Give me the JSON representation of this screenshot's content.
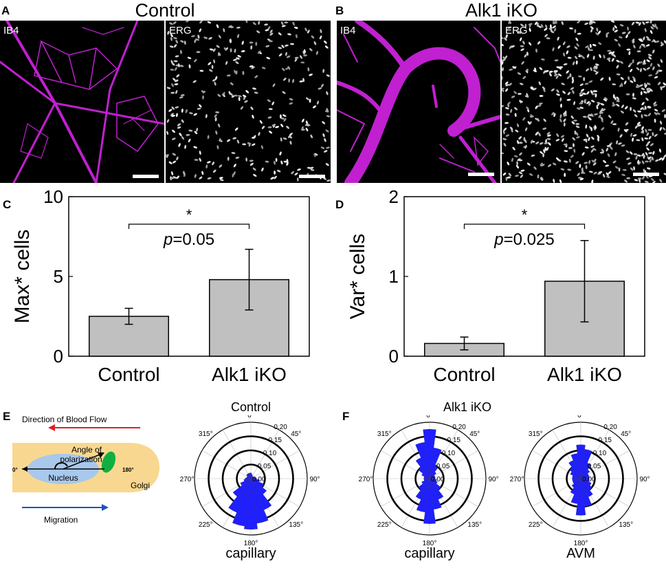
{
  "panels": {
    "A": {
      "letter": "A",
      "title": "Control",
      "left_label": "IB4",
      "right_label": "ERG"
    },
    "B": {
      "letter": "B",
      "title": "Alk1 iKO",
      "left_label": "IB4",
      "right_label": "ERG"
    },
    "C": {
      "letter": "C"
    },
    "D": {
      "letter": "D"
    },
    "E": {
      "letter": "E",
      "polar_title": "Control",
      "polar_caption": "capillary",
      "schematic": {
        "flow": "Direction of Blood Flow",
        "angle_line1": "Angle of",
        "angle_line2": "polarization",
        "nucleus": "Nucleus",
        "golgi": "Golgi",
        "migration": "Migration",
        "zero": "0°",
        "one_eighty": "180°"
      }
    },
    "F": {
      "letter": "F",
      "title": "Alk1 iKO",
      "caption_left": "capillary",
      "caption_right": "AVM"
    }
  },
  "colors": {
    "ib4": "#c020d0",
    "bar_fill": "#c0c0c0",
    "rose": "#1f1fff",
    "flow_arrow": "#e02020",
    "migration_arrow": "#2050c0",
    "golgi": "#10b040",
    "nucleus": "#a8c8ec",
    "cell": "#f8d890"
  },
  "polar_ticks": {
    "angles": [
      "0°",
      "45°",
      "90°",
      "135°",
      "180°",
      "225°",
      "270°",
      "315°"
    ],
    "radial": [
      "0.00",
      "0.05",
      "0.10",
      "0.15",
      "0.20"
    ]
  },
  "chart_data": [
    {
      "id": "C",
      "type": "bar",
      "categories": [
        "Control",
        "Alk1 iKO"
      ],
      "values": [
        2.5,
        4.8
      ],
      "errors": [
        0.5,
        1.9
      ],
      "ylabel": "Max* cells",
      "ylim": [
        0,
        10
      ],
      "yticks": [
        "0",
        "5",
        "10"
      ],
      "significance": {
        "star": "*",
        "p_label": "p",
        "p_value": "=0.05"
      }
    },
    {
      "id": "D",
      "type": "bar",
      "categories": [
        "Control",
        "Alk1 iKO"
      ],
      "values": [
        0.16,
        0.94
      ],
      "errors": [
        0.08,
        0.51
      ],
      "ylabel": "Var* cells",
      "ylim": [
        0,
        2
      ],
      "yticks": [
        "0",
        "1",
        "2"
      ],
      "significance": {
        "star": "*",
        "p_label": "p",
        "p_value": "=0.025"
      }
    }
  ],
  "polar_data": [
    {
      "id": "E-control",
      "rmax": 0.2,
      "bins_deg": [
        0,
        15,
        30,
        45,
        60,
        75,
        90,
        105,
        120,
        135,
        150,
        165,
        180,
        195,
        210,
        225,
        240,
        255,
        270,
        285,
        300,
        315,
        330,
        345
      ],
      "values": [
        0.02,
        0.015,
        0.01,
        0.01,
        0.01,
        0.015,
        0.02,
        0.03,
        0.05,
        0.07,
        0.12,
        0.16,
        0.18,
        0.17,
        0.13,
        0.08,
        0.04,
        0.025,
        0.02,
        0.015,
        0.015,
        0.02,
        0.02,
        0.02
      ]
    },
    {
      "id": "F-capillary",
      "rmax": 0.2,
      "bins_deg": [
        0,
        15,
        30,
        45,
        60,
        75,
        90,
        105,
        120,
        135,
        150,
        165,
        180,
        195,
        210,
        225,
        240,
        255,
        270,
        285,
        300,
        315,
        330,
        345
      ],
      "values": [
        0.175,
        0.11,
        0.05,
        0.03,
        0.02,
        0.02,
        0.02,
        0.025,
        0.03,
        0.05,
        0.08,
        0.11,
        0.16,
        0.12,
        0.08,
        0.05,
        0.03,
        0.02,
        0.02,
        0.02,
        0.03,
        0.05,
        0.08,
        0.13
      ]
    },
    {
      "id": "F-avm",
      "rmax": 0.2,
      "bins_deg": [
        0,
        15,
        30,
        45,
        60,
        75,
        90,
        105,
        120,
        135,
        150,
        165,
        180,
        195,
        210,
        225,
        240,
        255,
        270,
        285,
        300,
        315,
        330,
        345
      ],
      "values": [
        0.12,
        0.105,
        0.06,
        0.04,
        0.03,
        0.03,
        0.03,
        0.03,
        0.04,
        0.05,
        0.07,
        0.1,
        0.13,
        0.09,
        0.06,
        0.04,
        0.03,
        0.03,
        0.03,
        0.03,
        0.04,
        0.05,
        0.07,
        0.09
      ]
    }
  ]
}
